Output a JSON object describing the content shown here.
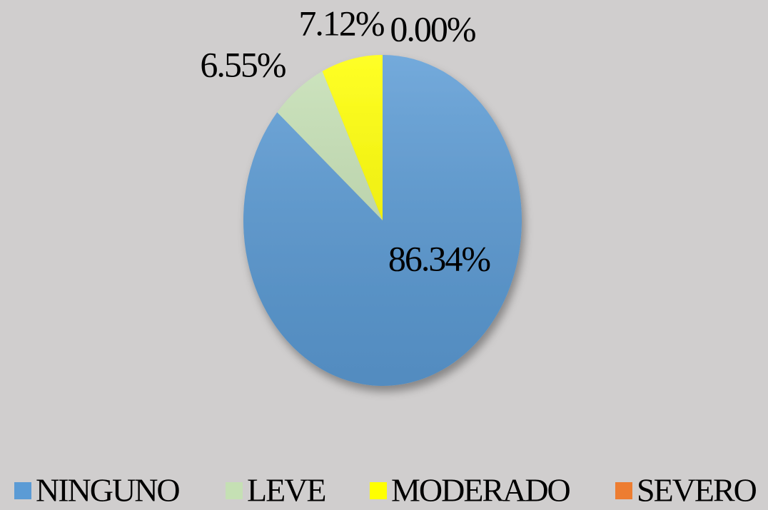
{
  "chart_data": {
    "type": "pie",
    "categories": [
      "NINGUNO",
      "LEVE",
      "MODERADO",
      "SEVERO"
    ],
    "values": [
      86.34,
      6.55,
      7.12,
      0.0
    ],
    "value_labels": [
      "86.34%",
      "6.55%",
      "7.12%",
      "0.00%"
    ],
    "colors": [
      "#5b9bd5",
      "#c5e0b4",
      "#ffff00",
      "#ed7d31"
    ],
    "legend": "bottom"
  }
}
